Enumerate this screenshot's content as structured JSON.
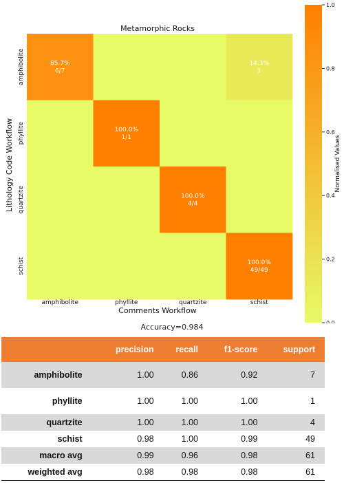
{
  "chart_data": {
    "type": "heatmap",
    "title": "Metamorphic Rocks",
    "xlabel": "Comments Workflow",
    "ylabel": "Lithology Code Workflow",
    "x_categories": [
      "amphibolite",
      "phyllite",
      "quartzite",
      "schist"
    ],
    "y_categories": [
      "amphibolite",
      "phyllite",
      "quartzite",
      "schist"
    ],
    "values": [
      [
        0.857,
        0,
        0,
        0.143
      ],
      [
        0,
        1.0,
        0,
        0
      ],
      [
        0,
        0,
        1.0,
        0
      ],
      [
        0,
        0,
        0,
        1.0
      ]
    ],
    "annotations": [
      {
        "row": 0,
        "col": 0,
        "pct": "85.7%",
        "count": "6/7"
      },
      {
        "row": 0,
        "col": 3,
        "pct": "14.3%",
        "count": "1"
      },
      {
        "row": 1,
        "col": 1,
        "pct": "100.0%",
        "count": "1/1"
      },
      {
        "row": 2,
        "col": 2,
        "pct": "100.0%",
        "count": "4/4"
      },
      {
        "row": 3,
        "col": 3,
        "pct": "100.0%",
        "count": "49/49"
      }
    ],
    "colorbar": {
      "label": "Normalised Values",
      "range": [
        0.0,
        1.0
      ],
      "ticks": [
        "0.0",
        "0.2",
        "0.4",
        "0.6",
        "0.8",
        "1.0"
      ],
      "color_low": "#e6fb66",
      "color_high": "#ff7f00"
    }
  },
  "accuracy_text": "Accuracy=0.984",
  "report": {
    "header": [
      "",
      "precision",
      "recall",
      "f1-score",
      "support"
    ],
    "rows": [
      {
        "label": "amphibolite",
        "values": [
          "1.00",
          "0.86",
          "0.92",
          "7"
        ],
        "shaded": true,
        "height": 38
      },
      {
        "label": "phyllite",
        "values": [
          "1.00",
          "1.00",
          "1.00",
          "1"
        ],
        "shaded": false,
        "height": 38
      },
      {
        "label": "quartzite",
        "values": [
          "1.00",
          "1.00",
          "1.00",
          "4"
        ],
        "shaded": true,
        "height": 24
      },
      {
        "label": "schist",
        "values": [
          "0.98",
          "1.00",
          "0.99",
          "49"
        ],
        "shaded": false,
        "height": 24
      },
      {
        "label": "macro avg",
        "values": [
          "0.99",
          "0.96",
          "0.98",
          "61"
        ],
        "shaded": true,
        "height": 24
      },
      {
        "label": "weighted avg",
        "values": [
          "0.98",
          "0.98",
          "0.98",
          "61"
        ],
        "shaded": false,
        "height": 24
      }
    ]
  }
}
